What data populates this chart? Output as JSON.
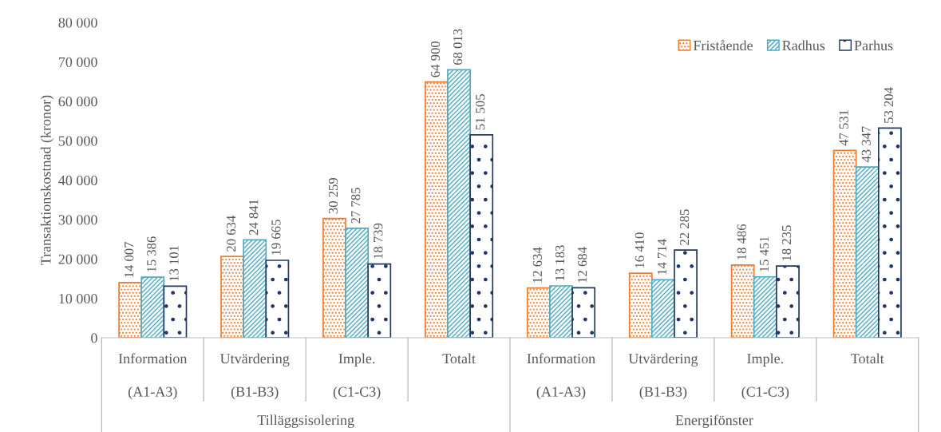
{
  "chart_data": {
    "type": "bar",
    "ylabel": "Transaktionskostnad (kronor)",
    "categories": [
      "Information\n(A1-A3)",
      "Utvärdering\n(B1-B3)",
      "Imple.\n(C1-C3)",
      "Totalt",
      "Information\n(A1-A3)",
      "Utvärdering\n(B1-B3)",
      "Imple.\n(C1-C3)",
      "Totalt"
    ],
    "annotations": [
      "Tilläggsisolering",
      "Energifönster"
    ],
    "series": [
      {
        "name": "Fristående",
        "color": "#ed7d31",
        "values": [
          14007,
          20634,
          30259,
          64900,
          12634,
          16410,
          18486,
          47531
        ],
        "value_labels": [
          "14 007",
          "20 634",
          "30 259",
          "64 900",
          "12 634",
          "16 410",
          "18 486",
          "47 531"
        ]
      },
      {
        "name": "Radhus",
        "color": "#4bacc6",
        "values": [
          15386,
          24841,
          27785,
          68013,
          13183,
          14714,
          15451,
          43347
        ],
        "value_labels": [
          "15 386",
          "24 841",
          "27 785",
          "68 013",
          "13 183",
          "14 714",
          "15 451",
          "43 347"
        ]
      },
      {
        "name": "Parhus",
        "color": "#1f3864",
        "values": [
          13101,
          19665,
          18739,
          51505,
          12684,
          22285,
          18235,
          53204
        ],
        "value_labels": [
          "13 101",
          "19 665",
          "18 739",
          "51 505",
          "12 684",
          "22 285",
          "18 235",
          "53 204"
        ]
      }
    ],
    "ylim": [
      0,
      80000
    ],
    "yticks": [
      0,
      {
        "value": 10000,
        "label": "10 000"
      },
      {
        "value": 20000,
        "label": "20 000"
      },
      {
        "value": 30000,
        "label": "30 000"
      },
      {
        "value": 40000,
        "label": "40 000"
      },
      {
        "value": 50000,
        "label": "50 000"
      },
      {
        "value": 60000,
        "label": "60 000"
      },
      {
        "value": 70000,
        "label": "70 000"
      },
      {
        "value": 80000,
        "label": "80 000"
      }
    ],
    "grid": false,
    "legend": "top right"
  }
}
